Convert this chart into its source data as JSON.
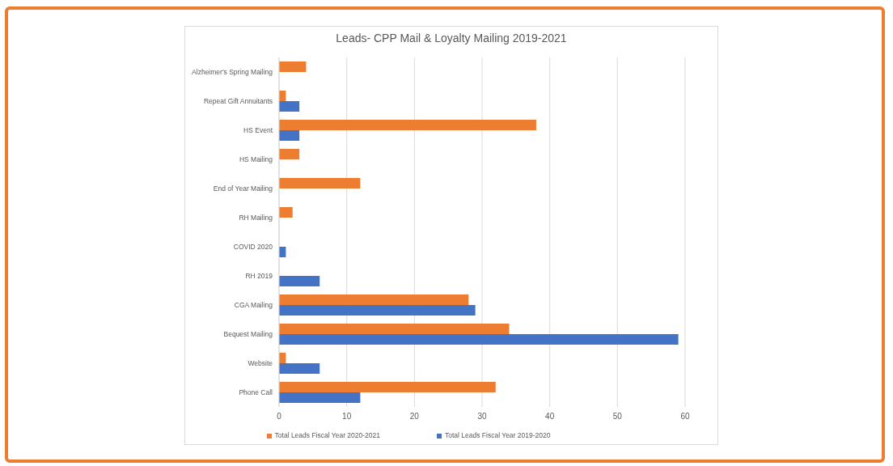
{
  "chart_data": {
    "type": "bar",
    "orientation": "horizontal",
    "title": "Leads- CPP Mail & Loyalty Mailing 2019-2021",
    "categories": [
      "Alzheimer's Spring Mailing",
      "Repeat Gift Annuitants",
      "HS Event",
      "HS Mailing",
      "End of Year Mailing",
      "RH Mailing",
      "COVID 2020",
      "RH 2019",
      "CGA Mailing",
      "Bequest Mailing",
      "Website",
      "Phone Call"
    ],
    "series": [
      {
        "name": "Total  Leads Fiscal Year 2020-2021",
        "color": "#ed7d31",
        "values": [
          4,
          1,
          38,
          3,
          12,
          2,
          null,
          null,
          28,
          34,
          1,
          32
        ]
      },
      {
        "name": "Total Leads Fiscal Year 2019-2020",
        "color": "#4472c4",
        "values": [
          null,
          3,
          3,
          null,
          null,
          null,
          1,
          6,
          29,
          59,
          6,
          12
        ]
      }
    ],
    "xlim": [
      0,
      60
    ],
    "xticks": [
      0,
      10,
      20,
      30,
      40,
      50,
      60
    ],
    "grid": "x",
    "legend": "bottom"
  }
}
